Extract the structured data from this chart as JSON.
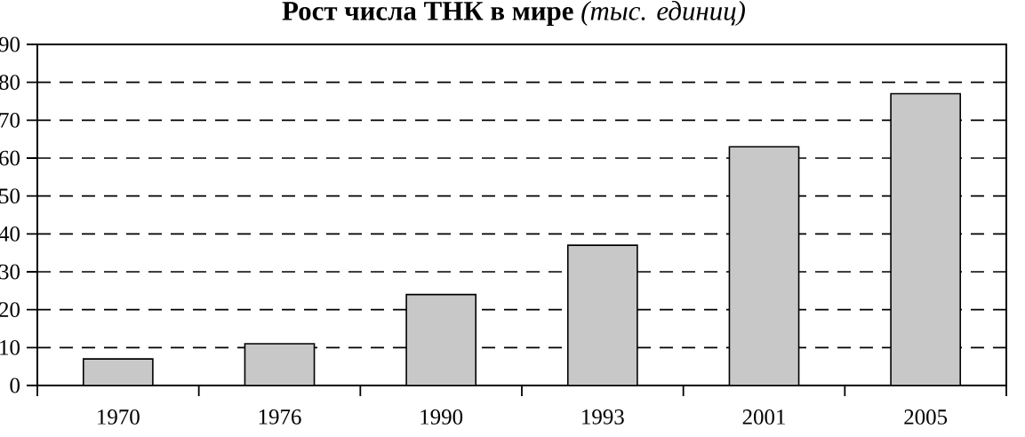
{
  "chart_data": {
    "type": "bar",
    "title": "**Рост числа ТНК в мире** *(тыс. единиц)*",
    "categories": [
      "1970",
      "1976",
      "1990",
      "1993",
      "2001",
      "2005"
    ],
    "values": [
      7,
      11,
      24,
      37,
      63,
      77
    ],
    "color": "#c8c8c8",
    "ylim": [
      0,
      90
    ],
    "yticks": [
      0,
      10,
      20,
      30,
      40,
      50,
      60,
      70,
      80,
      90
    ],
    "grid": "y"
  }
}
